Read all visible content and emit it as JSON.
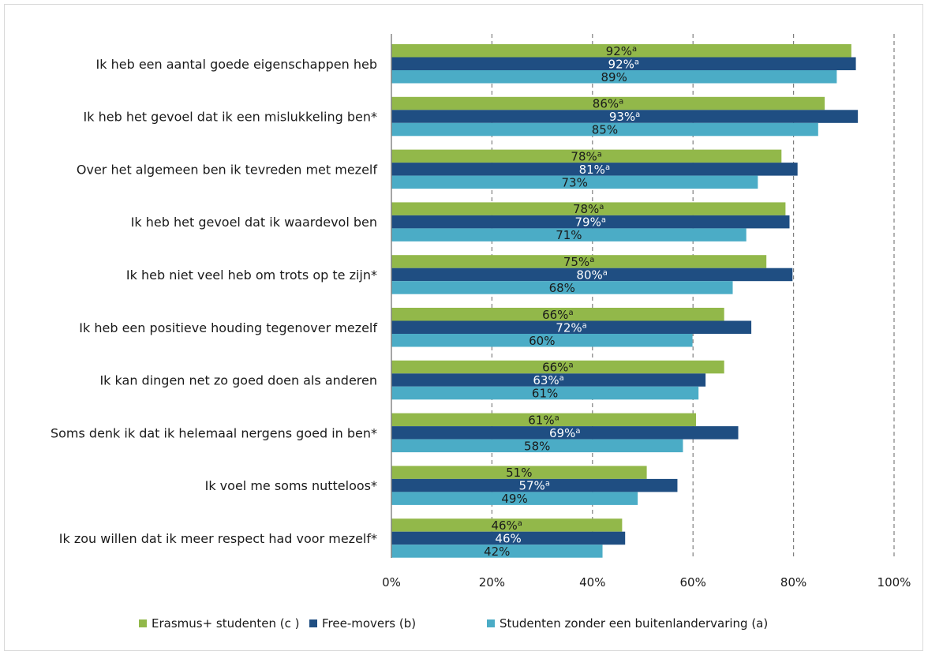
{
  "chart_data": {
    "type": "bar",
    "orientation": "horizontal",
    "categories": [
      "Ik heb een aantal goede eigenschappen heb",
      "Ik heb het gevoel dat ik een mislukkeling ben*",
      "Over het algemeen ben ik tevreden met mezelf",
      "Ik heb het gevoel dat ik waardevol ben",
      "Ik heb niet veel heb om trots op te zijn*",
      "Ik heb een positieve houding tegenover mezelf",
      "Ik kan dingen net zo goed doen als anderen",
      "Soms denk ik dat ik helemaal nergens goed in ben*",
      "Ik voel me soms nutteloos*",
      "Ik zou willen dat ik meer respect had voor mezelf*"
    ],
    "series": [
      {
        "name": "Erasmus+ studenten (c )",
        "color": "#92b84a",
        "label_color": "#1a1a1a",
        "values": [
          91.5,
          86.2,
          77.6,
          78.4,
          74.6,
          66.2,
          66.2,
          60.6,
          50.8,
          45.9
        ],
        "labels": [
          "92%",
          "86%",
          "78%",
          "78%",
          "75%",
          "66%",
          "66%",
          "61%",
          "51%",
          "46%"
        ],
        "superscripts": [
          "a",
          "a",
          "a",
          "a",
          "a",
          "a",
          "a",
          "a",
          "",
          "a"
        ]
      },
      {
        "name": "Free-movers (b)",
        "color": "#1f4e82",
        "label_color": "#ffffff",
        "values": [
          92.4,
          92.8,
          80.8,
          79.2,
          79.8,
          71.6,
          62.5,
          69.0,
          56.9,
          46.5
        ],
        "labels": [
          "92%",
          "93%",
          "81%",
          "79%",
          "80%",
          "72%",
          "63%",
          "69%",
          "57%",
          "46%"
        ],
        "superscripts": [
          "a",
          "a",
          "a",
          "a",
          "a",
          "a",
          "a",
          "a",
          "a",
          ""
        ]
      },
      {
        "name": "Studenten zonder een buitenlandervaring (a)",
        "color": "#4bacc6",
        "label_color": "#1a1a1a",
        "values": [
          88.6,
          84.9,
          72.9,
          70.6,
          67.9,
          59.9,
          61.1,
          58.0,
          49.0,
          42.0
        ],
        "labels": [
          "89%",
          "85%",
          "73%",
          "71%",
          "68%",
          "60%",
          "61%",
          "58%",
          "49%",
          "42%"
        ],
        "superscripts": [
          "",
          "",
          "",
          "",
          "",
          "",
          "",
          "",
          "",
          ""
        ]
      }
    ],
    "xlim": [
      0,
      100
    ],
    "xticks": [
      0,
      20,
      40,
      60,
      80,
      100
    ],
    "xtick_labels": [
      "0%",
      "20%",
      "40%",
      "60%",
      "80%",
      "100%"
    ],
    "grid": "vertical-dashed",
    "legend": "bottom"
  }
}
